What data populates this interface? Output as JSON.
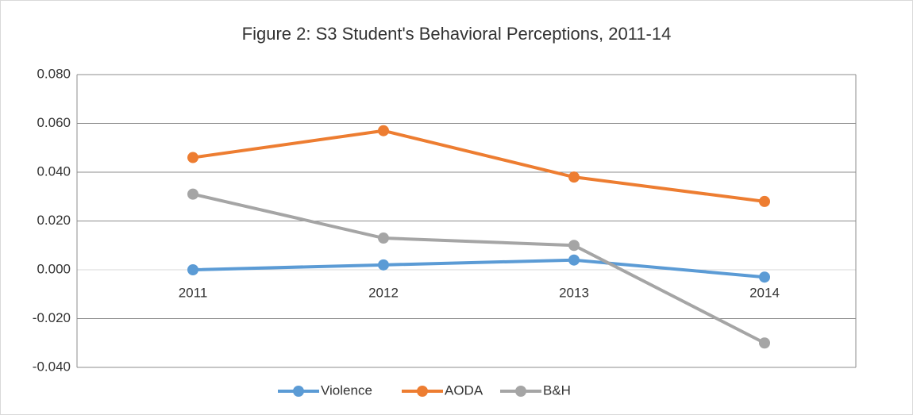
{
  "chart_data": {
    "type": "line",
    "title": "Figure 2:  S3 Student's  Behavioral Perceptions, 2011-14",
    "categories": [
      "2011",
      "2012",
      "2013",
      "2014"
    ],
    "series": [
      {
        "name": "Violence",
        "color": "#5b9bd5",
        "values": [
          0.0,
          0.002,
          0.004,
          -0.003
        ]
      },
      {
        "name": "AODA",
        "color": "#ed7d31",
        "values": [
          0.046,
          0.057,
          0.038,
          0.028
        ]
      },
      {
        "name": "B&H",
        "color": "#a5a5a5",
        "values": [
          0.031,
          0.013,
          0.01,
          -0.03
        ]
      }
    ],
    "ylim": [
      -0.04,
      0.08
    ],
    "yticks": [
      {
        "value": -0.04,
        "label": "-0.040"
      },
      {
        "value": -0.02,
        "label": "-0.020"
      },
      {
        "value": 0,
        "label": "0.000"
      },
      {
        "value": 0.02,
        "label": "0.020"
      },
      {
        "value": 0.04,
        "label": "0.040"
      },
      {
        "value": 0.06,
        "label": "0.060"
      },
      {
        "value": 0.08,
        "label": "0.080"
      }
    ],
    "grid": true,
    "legend": "bottom"
  }
}
